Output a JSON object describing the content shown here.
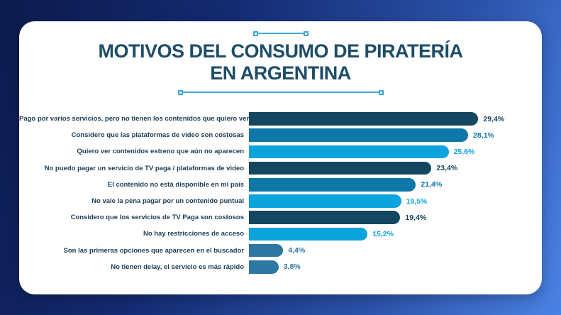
{
  "page": {
    "background_colors": [
      "#0c1a4c",
      "#142b72",
      "#2a51a8",
      "#4b82e4"
    ]
  },
  "card": {
    "background": "#ffffff"
  },
  "title": {
    "line1": "MOTIVOS DEL CONSUMO DE PIRATERÍA",
    "line2": "EN ARGENTINA",
    "color": "#1d4d68"
  },
  "decoration": {
    "color": "#3fa9d2"
  },
  "chart_data": {
    "type": "bar",
    "orientation": "horizontal",
    "title": "MOTIVOS DEL CONSUMO DE PIRATERÍA EN ARGENTINA",
    "unit": "%",
    "xlabel": "",
    "ylabel": "",
    "grid": false,
    "legend": false,
    "axis_max": 30,
    "categories": [
      "Pago por varios servicios, pero no tienen los contenidos que quiero ver",
      "Considero que las plataformas de video son costosas",
      "Quiero ver contenidos estreno que aún no aparecen",
      "No puedo pagar un servicio de TV paga / plataformas de video",
      "El contenido no está disponible en mi país",
      "No vale la pena pagar por un contenido puntual",
      "Considero que los servicios de TV Paga son costosos",
      "No hay restricciones de acceso",
      "Son las primeras opciones que aparecen en el buscador",
      "No tienen delay, el servicio es más rápido"
    ],
    "values": [
      29.4,
      28.1,
      25.6,
      23.4,
      21.4,
      19.5,
      19.4,
      15.2,
      4.4,
      3.8
    ],
    "value_labels": [
      "29,4%",
      "28,1%",
      "25,6%",
      "23,4%",
      "21,4%",
      "19,5%",
      "19,4%",
      "15,2%",
      "4,4%",
      "3,8%"
    ],
    "bar_colors": [
      "#14465f",
      "#0e76a8",
      "#0ba4dc",
      "#14465f",
      "#0e76a8",
      "#0ba4dc",
      "#14465f",
      "#0ba4dc",
      "#2e77a0",
      "#2e77a0"
    ]
  }
}
